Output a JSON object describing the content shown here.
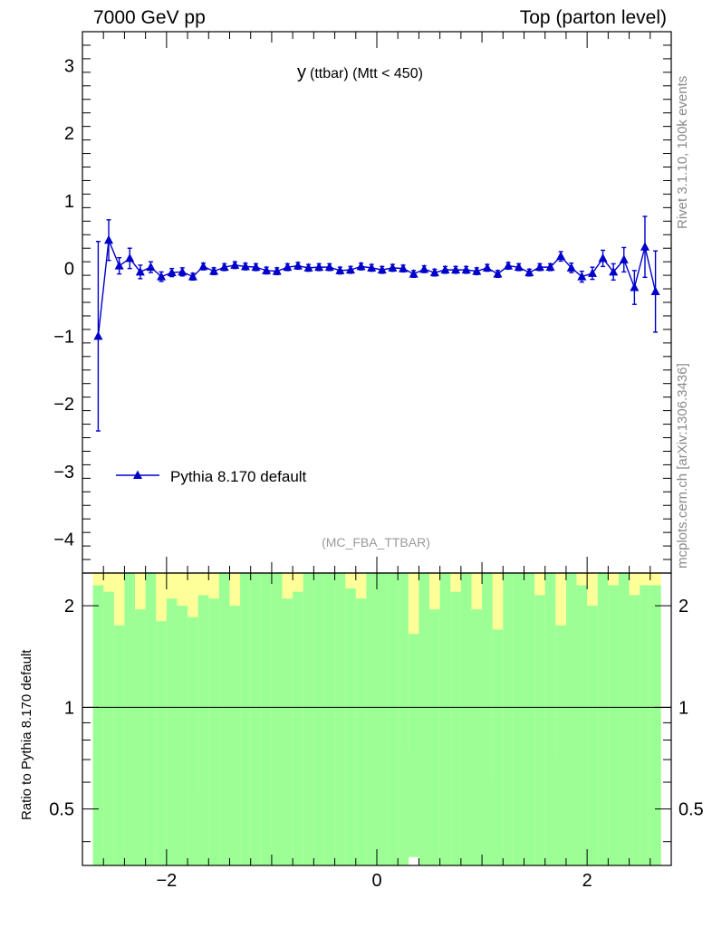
{
  "header": {
    "left": "7000 GeV pp",
    "right": "Top (parton level)"
  },
  "side_labels": {
    "rivet": "Rivet 3.1.10,  100k events",
    "mcplots": "mcplots.cern.ch [arXiv:1306.3436]"
  },
  "colors": {
    "series": "#0000cc",
    "band_inner": "#9cff96",
    "band_outer": "#ffff99"
  },
  "chart_data": [
    {
      "type": "line",
      "title_main": "y",
      "title_sub": "(ttbar) (Mtt < 450)",
      "analysis_tag": "(MC_FBA_TTBAR)",
      "xlim": [
        -2.8,
        2.8
      ],
      "ylim": [
        -4.5,
        3.5
      ],
      "yticks": [
        -4,
        -3,
        -2,
        -1,
        0,
        1,
        2,
        3
      ],
      "ytick_labels": [
        "−4",
        "−3",
        "−2",
        "−1",
        "0",
        "1",
        "2",
        "3"
      ],
      "legend_position": "lower-left",
      "series": [
        {
          "name": "Pythia 8.170 default",
          "marker": "triangle-up",
          "x": [
            -2.65,
            -2.55,
            -2.45,
            -2.35,
            -2.25,
            -2.15,
            -2.05,
            -1.95,
            -1.85,
            -1.75,
            -1.65,
            -1.55,
            -1.45,
            -1.35,
            -1.25,
            -1.15,
            -1.05,
            -0.95,
            -0.85,
            -0.75,
            -0.65,
            -0.55,
            -0.45,
            -0.35,
            -0.25,
            -0.15,
            -0.05,
            0.05,
            0.15,
            0.25,
            0.35,
            0.45,
            0.55,
            0.65,
            0.75,
            0.85,
            0.95,
            1.05,
            1.15,
            1.25,
            1.35,
            1.45,
            1.55,
            1.65,
            1.75,
            1.85,
            1.95,
            2.05,
            2.15,
            2.25,
            2.35,
            2.45,
            2.55,
            2.65
          ],
          "y": [
            -1.0,
            0.42,
            0.04,
            0.15,
            -0.05,
            0.02,
            -0.12,
            -0.06,
            -0.05,
            -0.12,
            0.03,
            -0.04,
            0.02,
            0.05,
            0.03,
            0.02,
            -0.03,
            -0.04,
            0.02,
            0.04,
            0.01,
            0.02,
            0.02,
            -0.03,
            -0.02,
            0.03,
            0.01,
            -0.02,
            0.01,
            0.0,
            -0.08,
            -0.01,
            -0.06,
            -0.02,
            -0.02,
            -0.02,
            -0.04,
            0.01,
            -0.08,
            0.04,
            0.02,
            -0.06,
            0.02,
            0.02,
            0.18,
            0.01,
            -0.12,
            -0.07,
            0.15,
            -0.05,
            0.13,
            -0.28,
            0.32,
            -0.34
          ],
          "yerr": [
            1.4,
            0.3,
            0.12,
            0.15,
            0.1,
            0.08,
            0.07,
            0.06,
            0.06,
            0.05,
            0.05,
            0.05,
            0.05,
            0.05,
            0.05,
            0.05,
            0.05,
            0.05,
            0.05,
            0.05,
            0.05,
            0.05,
            0.05,
            0.05,
            0.05,
            0.05,
            0.05,
            0.05,
            0.05,
            0.05,
            0.05,
            0.05,
            0.05,
            0.05,
            0.05,
            0.05,
            0.05,
            0.05,
            0.05,
            0.05,
            0.05,
            0.05,
            0.05,
            0.05,
            0.07,
            0.07,
            0.08,
            0.09,
            0.12,
            0.12,
            0.18,
            0.25,
            0.45,
            0.6
          ]
        }
      ]
    },
    {
      "type": "bar",
      "ylabel": "Ratio to Pythia 8.170 default",
      "xlim": [
        -2.8,
        2.8
      ],
      "ylim": [
        0.34,
        2.5
      ],
      "log_scale": true,
      "yticks": [
        0.5,
        1,
        2
      ],
      "ytick_labels": [
        "0.5",
        "1",
        "2"
      ],
      "xticks": [
        -2,
        0,
        2
      ],
      "xtick_labels": [
        "−2",
        "0",
        "2"
      ],
      "reference_line": 1,
      "x_edges": [
        -2.7,
        -2.6,
        -2.5,
        -2.4,
        -2.3,
        -2.2,
        -2.1,
        -2.0,
        -1.9,
        -1.8,
        -1.7,
        -1.6,
        -1.5,
        -1.4,
        -1.3,
        -1.2,
        -1.1,
        -1.0,
        -0.9,
        -0.8,
        -0.7,
        -0.6,
        -0.5,
        -0.4,
        -0.3,
        -0.2,
        -0.1,
        0.0,
        0.1,
        0.2,
        0.3,
        0.4,
        0.5,
        0.6,
        0.7,
        0.8,
        0.9,
        1.0,
        1.1,
        1.2,
        1.3,
        1.4,
        1.5,
        1.6,
        1.7,
        1.8,
        1.9,
        2.0,
        2.1,
        2.2,
        2.3,
        2.4,
        2.5,
        2.6,
        2.7
      ],
      "band_inner_low": [
        0.34,
        0.34,
        0.34,
        0.34,
        0.34,
        0.34,
        0.34,
        0.34,
        0.34,
        0.34,
        0.34,
        0.34,
        0.34,
        0.34,
        0.34,
        0.34,
        0.34,
        0.34,
        0.34,
        0.34,
        0.34,
        0.34,
        0.34,
        0.34,
        0.34,
        0.34,
        0.34,
        0.34,
        0.34,
        0.34,
        0.36,
        0.34,
        0.34,
        0.34,
        0.34,
        0.34,
        0.34,
        0.34,
        0.34,
        0.34,
        0.34,
        0.34,
        0.34,
        0.34,
        0.34,
        0.34,
        0.34,
        0.34,
        0.34,
        0.34,
        0.34,
        0.34,
        0.34,
        0.34
      ],
      "band_inner_high": [
        2.3,
        2.2,
        1.75,
        2.5,
        1.95,
        2.5,
        1.8,
        2.1,
        2.0,
        1.85,
        2.15,
        2.1,
        2.5,
        2.0,
        2.5,
        2.5,
        2.5,
        2.5,
        2.1,
        2.2,
        2.5,
        2.5,
        2.5,
        2.5,
        2.25,
        2.1,
        2.5,
        2.5,
        2.5,
        2.5,
        1.65,
        2.5,
        1.95,
        2.5,
        2.2,
        2.5,
        1.95,
        2.5,
        1.7,
        2.5,
        2.5,
        2.5,
        2.15,
        2.5,
        1.75,
        2.5,
        2.3,
        2.0,
        2.5,
        2.3,
        2.5,
        2.15,
        2.3,
        2.3
      ],
      "band_outer_low": [
        0.34,
        0.34,
        0.34,
        0.34,
        0.34,
        0.34,
        0.34,
        0.34,
        0.34,
        0.34,
        0.56,
        0.34,
        0.34,
        0.34,
        0.34,
        0.34,
        0.34,
        0.34,
        0.34,
        0.34,
        0.34,
        0.34,
        0.34,
        0.34,
        0.34,
        0.34,
        0.34,
        0.34,
        0.34,
        0.34,
        0.74,
        0.34,
        0.62,
        0.34,
        0.34,
        0.34,
        0.34,
        0.34,
        0.6,
        0.34,
        0.34,
        0.34,
        0.34,
        0.34,
        0.72,
        0.34,
        0.34,
        0.34,
        0.34,
        0.34,
        0.34,
        0.34,
        0.34,
        0.34
      ],
      "band_outer_high": [
        2.5,
        2.5,
        2.5,
        2.5,
        2.5,
        2.5,
        2.5,
        2.5,
        2.5,
        2.5,
        2.5,
        2.5,
        2.5,
        2.5,
        2.5,
        2.5,
        2.5,
        2.5,
        2.5,
        2.5,
        2.5,
        2.5,
        2.5,
        2.5,
        2.5,
        2.5,
        2.5,
        2.5,
        2.5,
        2.5,
        2.5,
        2.5,
        2.5,
        2.5,
        2.5,
        2.5,
        2.5,
        2.5,
        2.5,
        2.5,
        2.5,
        2.5,
        2.5,
        2.5,
        2.5,
        2.5,
        2.5,
        2.5,
        2.5,
        2.5,
        2.5,
        2.5,
        2.5,
        2.5
      ]
    }
  ]
}
